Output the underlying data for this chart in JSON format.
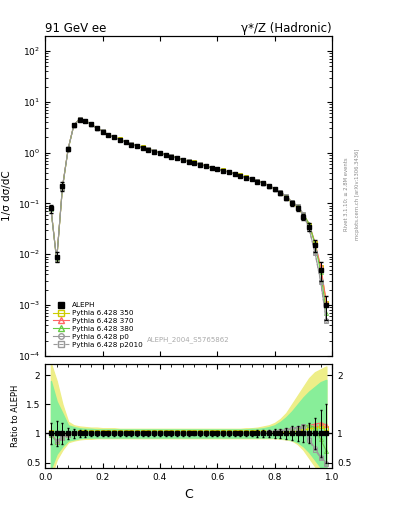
{
  "title_left": "91 GeV ee",
  "title_right": "γ*/Z (Hadronic)",
  "ylabel_main": "1/σ dσ/dC",
  "ylabel_ratio": "Ratio to ALEPH",
  "xlabel": "C",
  "watermark": "ALEPH_2004_S5765862",
  "right_label": "mcplots.cern.ch [arXiv:1306.3436]",
  "right_label2": "Rivet 3.1.10; ≥ 2.8M events",
  "legend_entries": [
    "ALEPH",
    "Pythia 6.428 350",
    "Pythia 6.428 370",
    "Pythia 6.428 380",
    "Pythia 6.428 p0",
    "Pythia 6.428 p2010"
  ],
  "main_ylim_lo": 0.0001,
  "main_ylim_hi": 200,
  "ratio_ylim_lo": 0.4,
  "ratio_ylim_hi": 2.2,
  "xlim_lo": 0.0,
  "xlim_hi": 1.0,
  "x": [
    0.02,
    0.04,
    0.06,
    0.08,
    0.1,
    0.12,
    0.14,
    0.16,
    0.18,
    0.2,
    0.22,
    0.24,
    0.26,
    0.28,
    0.3,
    0.32,
    0.34,
    0.36,
    0.38,
    0.4,
    0.42,
    0.44,
    0.46,
    0.48,
    0.5,
    0.52,
    0.54,
    0.56,
    0.58,
    0.6,
    0.62,
    0.64,
    0.66,
    0.68,
    0.7,
    0.72,
    0.74,
    0.76,
    0.78,
    0.8,
    0.82,
    0.84,
    0.86,
    0.88,
    0.9,
    0.92,
    0.94,
    0.96,
    0.98
  ],
  "aleph_y": [
    0.08,
    0.009,
    0.22,
    1.2,
    3.5,
    4.5,
    4.2,
    3.6,
    3.0,
    2.6,
    2.2,
    2.0,
    1.8,
    1.6,
    1.45,
    1.35,
    1.25,
    1.15,
    1.05,
    0.98,
    0.9,
    0.84,
    0.78,
    0.72,
    0.67,
    0.63,
    0.58,
    0.54,
    0.5,
    0.47,
    0.44,
    0.41,
    0.38,
    0.35,
    0.32,
    0.3,
    0.27,
    0.25,
    0.22,
    0.19,
    0.16,
    0.13,
    0.1,
    0.08,
    0.055,
    0.035,
    0.015,
    0.005,
    0.001
  ],
  "aleph_err": [
    0.015,
    0.002,
    0.04,
    0.12,
    0.25,
    0.25,
    0.22,
    0.18,
    0.14,
    0.12,
    0.1,
    0.09,
    0.08,
    0.07,
    0.06,
    0.06,
    0.05,
    0.05,
    0.05,
    0.04,
    0.04,
    0.03,
    0.03,
    0.03,
    0.03,
    0.02,
    0.02,
    0.02,
    0.02,
    0.02,
    0.02,
    0.02,
    0.018,
    0.017,
    0.016,
    0.015,
    0.015,
    0.014,
    0.014,
    0.014,
    0.013,
    0.013,
    0.012,
    0.01,
    0.008,
    0.006,
    0.004,
    0.002,
    0.0005
  ],
  "colors": {
    "p350": "#cccc00",
    "p370": "#ff6666",
    "p380": "#66cc44",
    "p0": "#999999",
    "p2010": "#999999",
    "aleph": "#000000",
    "band_yellow": "#eeee88",
    "band_green": "#88ee99"
  },
  "ratio_yellow_lo": [
    0.25,
    0.55,
    0.72,
    0.85,
    0.88,
    0.9,
    0.91,
    0.91,
    0.92,
    0.92,
    0.92,
    0.92,
    0.92,
    0.92,
    0.92,
    0.92,
    0.92,
    0.92,
    0.92,
    0.92,
    0.92,
    0.92,
    0.92,
    0.92,
    0.92,
    0.92,
    0.92,
    0.92,
    0.92,
    0.92,
    0.92,
    0.92,
    0.92,
    0.92,
    0.92,
    0.92,
    0.92,
    0.92,
    0.92,
    0.92,
    0.91,
    0.9,
    0.88,
    0.82,
    0.72,
    0.58,
    0.44,
    0.3,
    0.2
  ],
  "ratio_yellow_hi": [
    2.2,
    1.9,
    1.5,
    1.2,
    1.14,
    1.12,
    1.11,
    1.1,
    1.1,
    1.09,
    1.09,
    1.09,
    1.08,
    1.08,
    1.08,
    1.08,
    1.08,
    1.08,
    1.08,
    1.08,
    1.08,
    1.08,
    1.08,
    1.08,
    1.08,
    1.08,
    1.08,
    1.08,
    1.08,
    1.08,
    1.08,
    1.08,
    1.08,
    1.08,
    1.09,
    1.09,
    1.1,
    1.12,
    1.14,
    1.18,
    1.25,
    1.35,
    1.5,
    1.65,
    1.8,
    1.95,
    2.05,
    2.1,
    2.15
  ],
  "ratio_green_lo": [
    0.4,
    0.65,
    0.78,
    0.88,
    0.9,
    0.92,
    0.93,
    0.93,
    0.93,
    0.93,
    0.93,
    0.93,
    0.93,
    0.93,
    0.93,
    0.93,
    0.93,
    0.93,
    0.93,
    0.93,
    0.93,
    0.93,
    0.93,
    0.93,
    0.93,
    0.93,
    0.93,
    0.93,
    0.93,
    0.93,
    0.93,
    0.93,
    0.93,
    0.93,
    0.93,
    0.93,
    0.93,
    0.93,
    0.93,
    0.93,
    0.92,
    0.91,
    0.89,
    0.85,
    0.78,
    0.68,
    0.55,
    0.42,
    0.35
  ],
  "ratio_green_hi": [
    1.9,
    1.55,
    1.35,
    1.14,
    1.11,
    1.09,
    1.08,
    1.08,
    1.07,
    1.07,
    1.07,
    1.07,
    1.07,
    1.07,
    1.07,
    1.07,
    1.07,
    1.07,
    1.07,
    1.07,
    1.07,
    1.07,
    1.07,
    1.07,
    1.07,
    1.07,
    1.07,
    1.07,
    1.07,
    1.07,
    1.07,
    1.07,
    1.07,
    1.07,
    1.07,
    1.08,
    1.08,
    1.09,
    1.11,
    1.14,
    1.2,
    1.28,
    1.38,
    1.5,
    1.62,
    1.72,
    1.8,
    1.88,
    1.92
  ],
  "ratio_lines": {
    "p350_ratio": [
      1.02,
      0.85,
      0.93,
      0.98,
      1.01,
      1.02,
      1.02,
      1.02,
      1.02,
      1.02,
      1.02,
      1.02,
      1.02,
      1.02,
      1.02,
      1.02,
      1.02,
      1.02,
      1.02,
      1.02,
      1.02,
      1.02,
      1.02,
      1.02,
      1.02,
      1.02,
      1.02,
      1.02,
      1.02,
      1.02,
      1.02,
      1.02,
      1.02,
      1.02,
      1.02,
      1.02,
      1.02,
      1.02,
      1.02,
      1.02,
      1.02,
      1.02,
      1.03,
      1.04,
      1.06,
      1.08,
      1.1,
      1.12,
      1.1
    ],
    "p370_ratio": [
      1.0,
      0.87,
      0.94,
      0.99,
      1.01,
      1.01,
      1.01,
      1.01,
      1.01,
      1.01,
      1.01,
      1.01,
      1.01,
      1.01,
      1.01,
      1.01,
      1.01,
      1.01,
      1.01,
      1.01,
      1.01,
      1.01,
      1.01,
      1.01,
      1.01,
      1.01,
      1.01,
      1.01,
      1.01,
      1.01,
      1.01,
      1.01,
      1.01,
      1.01,
      1.01,
      1.01,
      1.01,
      1.02,
      1.02,
      1.03,
      1.04,
      1.06,
      1.08,
      1.1,
      1.12,
      1.14,
      1.16,
      1.18,
      1.15
    ],
    "p380_ratio": [
      0.98,
      0.86,
      0.93,
      0.98,
      1.0,
      1.01,
      1.01,
      1.01,
      1.01,
      1.01,
      1.01,
      1.01,
      1.01,
      1.01,
      1.01,
      1.01,
      1.01,
      1.01,
      1.01,
      1.01,
      1.01,
      1.01,
      1.01,
      1.01,
      1.01,
      1.01,
      1.01,
      1.01,
      1.01,
      1.01,
      1.01,
      1.01,
      1.01,
      1.01,
      1.01,
      1.01,
      1.01,
      1.01,
      1.02,
      1.03,
      1.04,
      1.06,
      1.08,
      1.1,
      1.12,
      1.14,
      1.1,
      0.9,
      0.7
    ],
    "p0_ratio": [
      0.99,
      0.86,
      0.94,
      0.98,
      1.01,
      1.01,
      1.01,
      1.01,
      1.01,
      1.01,
      1.01,
      1.01,
      1.01,
      1.01,
      1.01,
      1.01,
      1.01,
      1.01,
      1.01,
      1.01,
      1.01,
      1.01,
      1.01,
      1.01,
      1.01,
      1.01,
      1.01,
      1.01,
      1.01,
      1.01,
      1.01,
      1.01,
      1.01,
      1.01,
      1.01,
      1.01,
      1.01,
      1.01,
      1.02,
      1.03,
      1.04,
      1.06,
      1.08,
      1.1,
      1.12,
      0.9,
      0.75,
      0.6,
      0.5
    ],
    "p2010_ratio": [
      1.01,
      0.87,
      0.93,
      0.98,
      1.01,
      1.01,
      1.01,
      1.01,
      1.01,
      1.01,
      1.01,
      1.01,
      1.01,
      1.01,
      1.01,
      1.01,
      1.01,
      1.01,
      1.01,
      1.01,
      1.01,
      1.01,
      1.01,
      1.01,
      1.01,
      1.01,
      1.01,
      1.01,
      1.01,
      1.01,
      1.01,
      1.01,
      1.01,
      1.01,
      1.01,
      1.01,
      1.01,
      1.01,
      1.02,
      1.03,
      1.04,
      1.06,
      1.08,
      1.1,
      1.12,
      0.88,
      0.72,
      0.58,
      0.48
    ]
  }
}
